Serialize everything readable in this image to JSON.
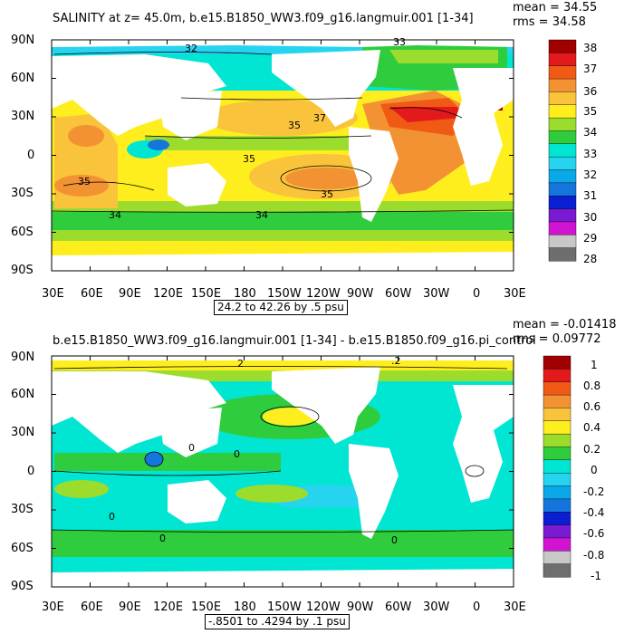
{
  "top_panel": {
    "title": "SALINITY at z=  45.0m, b.e15.B1850_WW3.f09_g16.langmuir.001 [1-34]",
    "mean": "mean = 34.55",
    "rms": "rms = 34.58",
    "range_note": "24.2 to 42.26 by .5 psu",
    "lat_labels": [
      "90N",
      "60N",
      "30N",
      "0",
      "30S",
      "60S",
      "90S"
    ],
    "lon_labels": [
      "30E",
      "60E",
      "90E",
      "120E",
      "150E",
      "180",
      "150W",
      "120W",
      "90W",
      "60W",
      "30W",
      "0",
      "30E"
    ],
    "contour_labels": [
      "32",
      "33",
      "35",
      "37",
      "35",
      "35",
      "35",
      "34",
      "34"
    ],
    "colorbar": {
      "labels": [
        "38",
        "37",
        "36",
        "35",
        "34",
        "33",
        "32",
        "31",
        "30",
        "29",
        "28"
      ],
      "colors": [
        "#a00000",
        "#e31a1c",
        "#f05a14",
        "#f39232",
        "#f9c33c",
        "#ffee1e",
        "#9bdc2c",
        "#2fcc3e",
        "#00e6d2",
        "#27d4f0",
        "#0aa8e8",
        "#1476dc",
        "#0a1ed2",
        "#7a1ad2",
        "#d213d2",
        "#c8c8c8",
        "#6e6e6e"
      ]
    }
  },
  "bottom_panel": {
    "title": "b.e15.B1850_WW3.f09_g16.langmuir.001 [1-34] - b.e15.B1850.f09_g16.pi_control",
    "mean": "mean = -0.01418",
    "rms": "rms = 0.09772",
    "range_note": "-.8501 to .4294 by .1 psu",
    "lat_labels": [
      "90N",
      "60N",
      "30N",
      "0",
      "30S",
      "60S",
      "90S"
    ],
    "lon_labels": [
      "30E",
      "60E",
      "90E",
      "120E",
      "150E",
      "180",
      "150W",
      "120W",
      "90W",
      "60W",
      "30W",
      "0",
      "30E"
    ],
    "contour_labels": [
      "2",
      ".2",
      "0",
      "0",
      "0",
      "0",
      "0"
    ],
    "colorbar": {
      "labels": [
        "1",
        "0.8",
        "0.6",
        "0.4",
        "0.2",
        "0",
        "-0.2",
        "-0.4",
        "-0.6",
        "-0.8",
        "-1"
      ],
      "colors": [
        "#a00000",
        "#e31a1c",
        "#f05a14",
        "#f39232",
        "#f9c33c",
        "#ffee1e",
        "#9bdc2c",
        "#2fcc3e",
        "#00e6d2",
        "#27d4f0",
        "#0aa8e8",
        "#1476dc",
        "#0a1ed2",
        "#7a1ad2",
        "#d213d2",
        "#c8c8c8",
        "#6e6e6e"
      ]
    }
  }
}
